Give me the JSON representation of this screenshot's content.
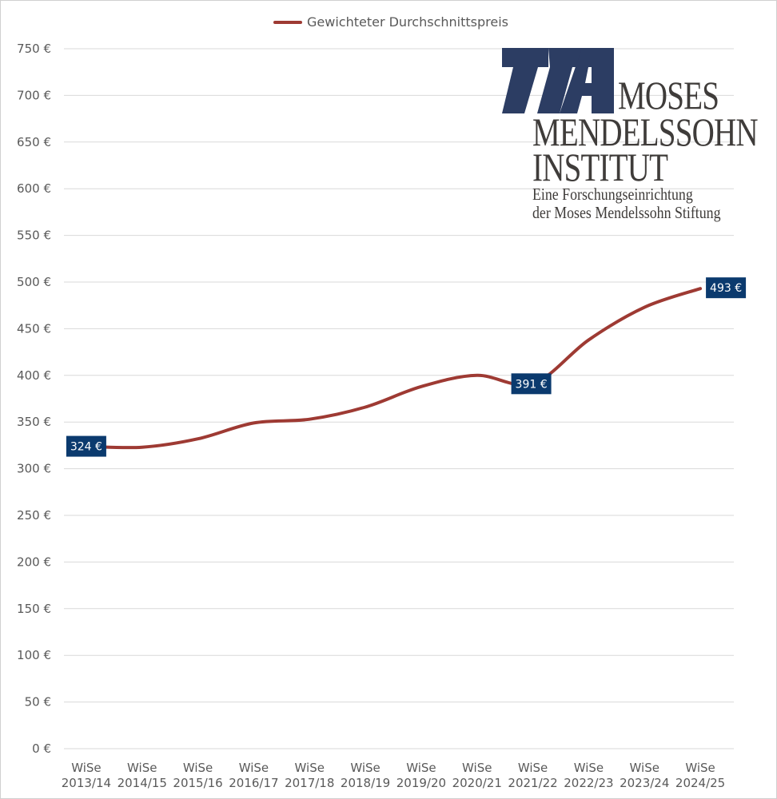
{
  "legend": {
    "label": "Gewichteter Durchschnittspreis",
    "color": "#9e3a33"
  },
  "logo": {
    "line1": "MOSES",
    "line2": "MENDELSSOHN",
    "line3": "INSTITUT",
    "line4": "Eine Forschungseinrichtung",
    "line5": "der Moses Mendelssohn Stiftung",
    "color": "#2c3d63"
  },
  "chart_data": {
    "type": "line",
    "title": "",
    "xlabel": "",
    "ylabel": "",
    "ylim": [
      0,
      750
    ],
    "yticks": [
      0,
      50,
      100,
      150,
      200,
      250,
      300,
      350,
      400,
      450,
      500,
      550,
      600,
      650,
      700,
      750
    ],
    "ytick_labels": [
      "0 €",
      "50 €",
      "100 €",
      "150 €",
      "200 €",
      "250 €",
      "300 €",
      "350 €",
      "400 €",
      "450 €",
      "500 €",
      "550 €",
      "600 €",
      "650 €",
      "700 €",
      "750 €"
    ],
    "grid": true,
    "legend_position": "top",
    "smooth": true,
    "categories": [
      [
        "WiSe",
        "2013/14"
      ],
      [
        "WiSe",
        "2014/15"
      ],
      [
        "WiSe",
        "2015/16"
      ],
      [
        "WiSe",
        "2016/17"
      ],
      [
        "WiSe",
        "2017/18"
      ],
      [
        "WiSe",
        "2018/19"
      ],
      [
        "WiSe",
        "2019/20"
      ],
      [
        "WiSe",
        "2020/21"
      ],
      [
        "WiSe",
        "2021/22"
      ],
      [
        "WiSe",
        "2022/23"
      ],
      [
        "WiSe",
        "2023/24"
      ],
      [
        "WiSe",
        "2024/25"
      ]
    ],
    "series": [
      {
        "name": "Gewichteter Durchschnittspreis",
        "color": "#9e3a33",
        "values": [
          324,
          323,
          332,
          349,
          353,
          366,
          388,
          400,
          391,
          438,
          473,
          493
        ]
      }
    ],
    "data_labels": [
      {
        "index": 0,
        "text": "324 €"
      },
      {
        "index": 8,
        "text": "391 €"
      },
      {
        "index": 11,
        "text": "493 €"
      }
    ],
    "data_label_color": "#0b3a6e"
  }
}
